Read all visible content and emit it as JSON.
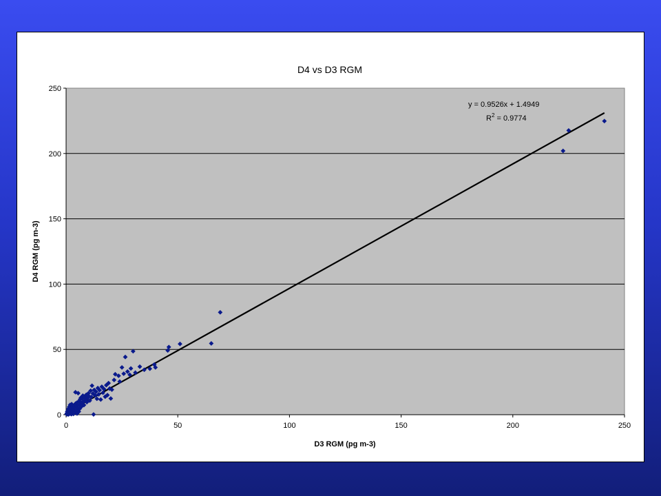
{
  "chart_data": {
    "type": "scatter",
    "title": "D4 vs D3 RGM",
    "xlabel": "D3 RGM (pg m-3)",
    "ylabel": "D4 RGM (pg m-3)",
    "xlim": [
      0,
      250
    ],
    "ylim": [
      0,
      250
    ],
    "xticks": [
      0,
      50,
      100,
      150,
      200,
      250
    ],
    "yticks": [
      0,
      50,
      100,
      150,
      200,
      250
    ],
    "grid": "horizontal",
    "legend": "none",
    "marker_color": "#0a1a8c",
    "plot_background": "#c0c0c0",
    "trendline": {
      "slope": 0.9526,
      "intercept": 1.4949,
      "x_range": [
        0,
        241
      ],
      "equation": "y = 0.9526x + 1.4949",
      "r2_label": "R",
      "r2_sup": "2",
      "r2_value": " = 0.9774"
    },
    "points": [
      [
        0.2,
        0.5
      ],
      [
        0.4,
        1.2
      ],
      [
        0.5,
        2.4
      ],
      [
        0.6,
        0.3
      ],
      [
        0.8,
        3.1
      ],
      [
        0.9,
        1.8
      ],
      [
        1.0,
        4.5
      ],
      [
        1.1,
        0.2
      ],
      [
        1.2,
        2.8
      ],
      [
        1.4,
        6.0
      ],
      [
        1.5,
        1.0
      ],
      [
        1.6,
        3.6
      ],
      [
        1.8,
        7.5
      ],
      [
        1.9,
        0.8
      ],
      [
        2.0,
        4.2
      ],
      [
        2.1,
        2.2
      ],
      [
        2.3,
        5.4
      ],
      [
        2.4,
        0.4
      ],
      [
        2.5,
        8.1
      ],
      [
        2.6,
        3.3
      ],
      [
        2.8,
        1.5
      ],
      [
        2.9,
        6.2
      ],
      [
        3.0,
        2.6
      ],
      [
        3.2,
        4.8
      ],
      [
        3.3,
        0.6
      ],
      [
        3.5,
        7.0
      ],
      [
        3.6,
        3.9
      ],
      [
        3.8,
        5.6
      ],
      [
        4.0,
        1.9
      ],
      [
        4.2,
        17.2
      ],
      [
        4.3,
        8.6
      ],
      [
        4.5,
        3.2
      ],
      [
        4.7,
        6.5
      ],
      [
        4.9,
        0.9
      ],
      [
        5.0,
        9.4
      ],
      [
        5.2,
        5.0
      ],
      [
        5.4,
        16.5
      ],
      [
        5.5,
        7.2
      ],
      [
        5.7,
        2.4
      ],
      [
        5.9,
        10.3
      ],
      [
        6.0,
        4.4
      ],
      [
        6.2,
        11.6
      ],
      [
        6.4,
        8.0
      ],
      [
        6.6,
        13.0
      ],
      [
        6.8,
        6.1
      ],
      [
        7.0,
        9.2
      ],
      [
        7.2,
        12.4
      ],
      [
        7.5,
        14.6
      ],
      [
        7.8,
        10.0
      ],
      [
        8.0,
        7.4
      ],
      [
        8.3,
        13.4
      ],
      [
        8.6,
        11.2
      ],
      [
        9.0,
        15.2
      ],
      [
        9.3,
        9.6
      ],
      [
        9.6,
        12.8
      ],
      [
        10.0,
        16.4
      ],
      [
        10.3,
        14.0
      ],
      [
        10.6,
        10.8
      ],
      [
        11.0,
        18.4
      ],
      [
        11.3,
        13.6
      ],
      [
        11.6,
        22.2
      ],
      [
        12.0,
        16.2
      ],
      [
        12.3,
        0.2
      ],
      [
        12.6,
        19.0
      ],
      [
        13.0,
        14.8
      ],
      [
        13.4,
        17.6
      ],
      [
        13.8,
        12.2
      ],
      [
        14.2,
        20.4
      ],
      [
        14.6,
        15.6
      ],
      [
        15.0,
        18.8
      ],
      [
        15.5,
        11.6
      ],
      [
        16.0,
        21.4
      ],
      [
        16.5,
        16.8
      ],
      [
        17.0,
        19.6
      ],
      [
        17.5,
        13.8
      ],
      [
        18.0,
        22.6
      ],
      [
        18.5,
        15.0
      ],
      [
        19.0,
        24.2
      ],
      [
        19.5,
        20.0
      ],
      [
        20.0,
        12.4
      ],
      [
        20.5,
        19.2
      ],
      [
        21.5,
        26.6
      ],
      [
        22.0,
        31.0
      ],
      [
        23.5,
        29.8
      ],
      [
        24.0,
        25.4
      ],
      [
        25.0,
        36.2
      ],
      [
        25.8,
        31.4
      ],
      [
        26.5,
        44.2
      ],
      [
        27.5,
        33.0
      ],
      [
        28.5,
        30.6
      ],
      [
        29.0,
        35.4
      ],
      [
        30.0,
        48.6
      ],
      [
        31.0,
        32.2
      ],
      [
        33.0,
        36.8
      ],
      [
        35.0,
        34.4
      ],
      [
        37.5,
        35.2
      ],
      [
        39.5,
        38.4
      ],
      [
        40.0,
        36.2
      ],
      [
        45.5,
        49.2
      ],
      [
        46.0,
        51.8
      ],
      [
        51.0,
        54.2
      ],
      [
        65.0,
        54.6
      ],
      [
        69.0,
        78.4
      ],
      [
        222.5,
        202.0
      ],
      [
        225.0,
        217.6
      ],
      [
        241.0,
        224.8
      ]
    ]
  }
}
